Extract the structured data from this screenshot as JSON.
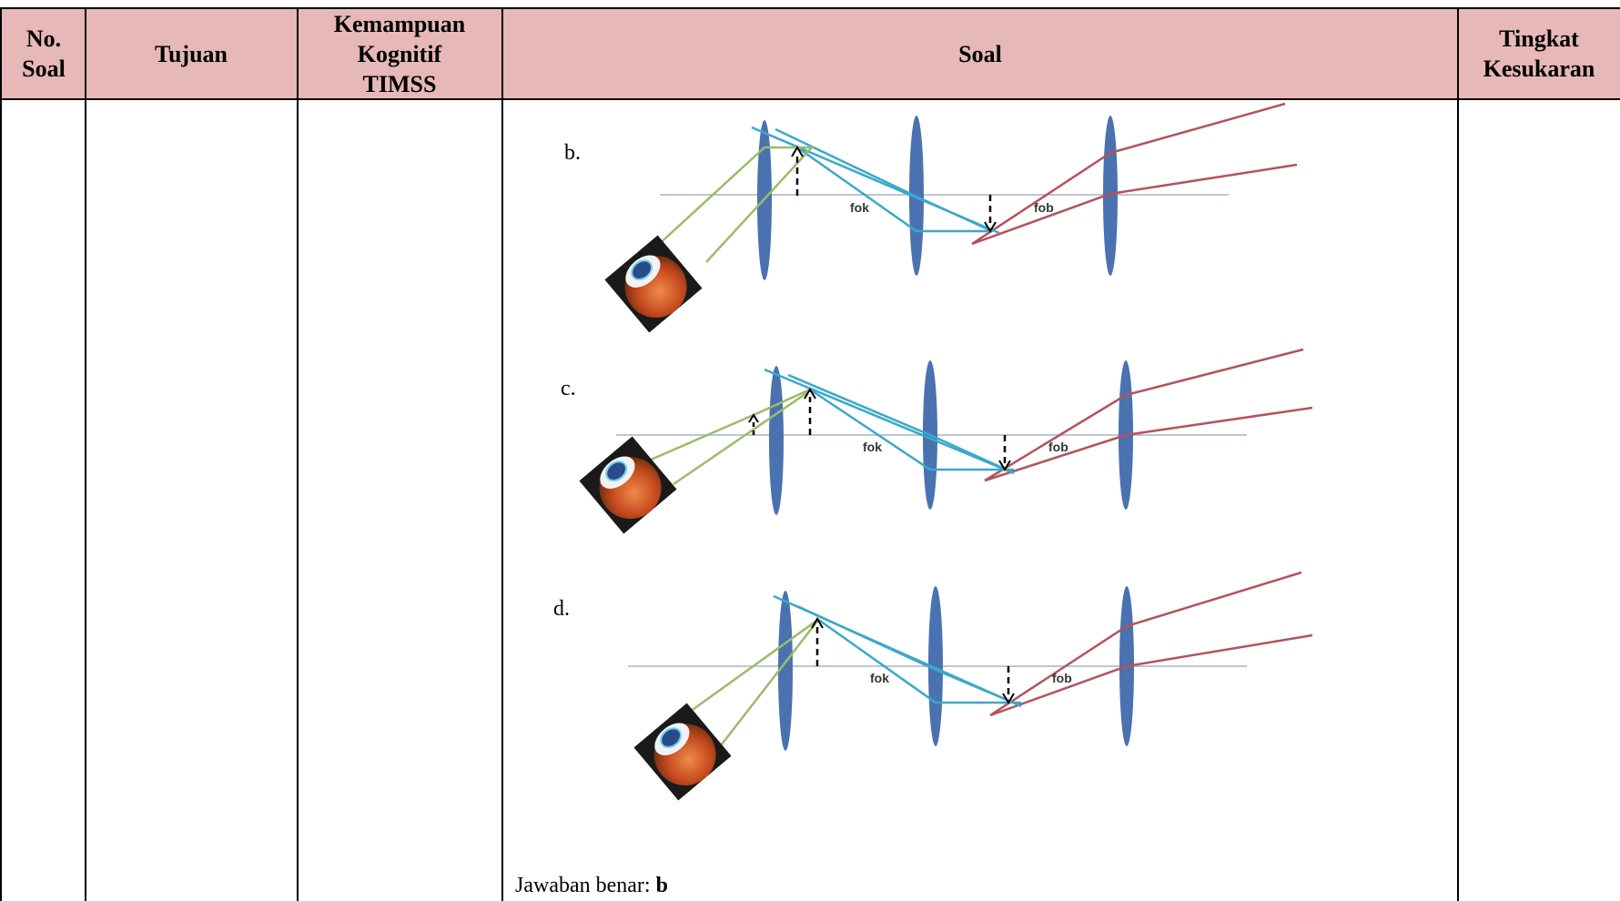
{
  "table": {
    "headers": {
      "no_soal": [
        "No.",
        "Soal"
      ],
      "tujuan": "Tujuan",
      "kemampuan": [
        "Kemampuan",
        "Kognitif",
        "TIMSS"
      ],
      "soal": "Soal",
      "tingkat": [
        "Tingkat",
        "Kesukaran"
      ]
    }
  },
  "options": [
    {
      "label": "b.",
      "fok": "fok",
      "fob": "fob"
    },
    {
      "label": "c.",
      "fok": "fok",
      "fob": "fob"
    },
    {
      "label": "d.",
      "fok": "fok",
      "fob": "fob"
    }
  ],
  "answer": {
    "prefix": "Jawaban benar: ",
    "value": "b"
  },
  "colors": {
    "header_bg": "#e6b8b7",
    "lens": "#4a72b0",
    "ray_eyepiece": "#9dbb6a",
    "ray_middle": "#3aa8cc",
    "ray_objective": "#b5525c",
    "axis": "#a8b4c8"
  }
}
